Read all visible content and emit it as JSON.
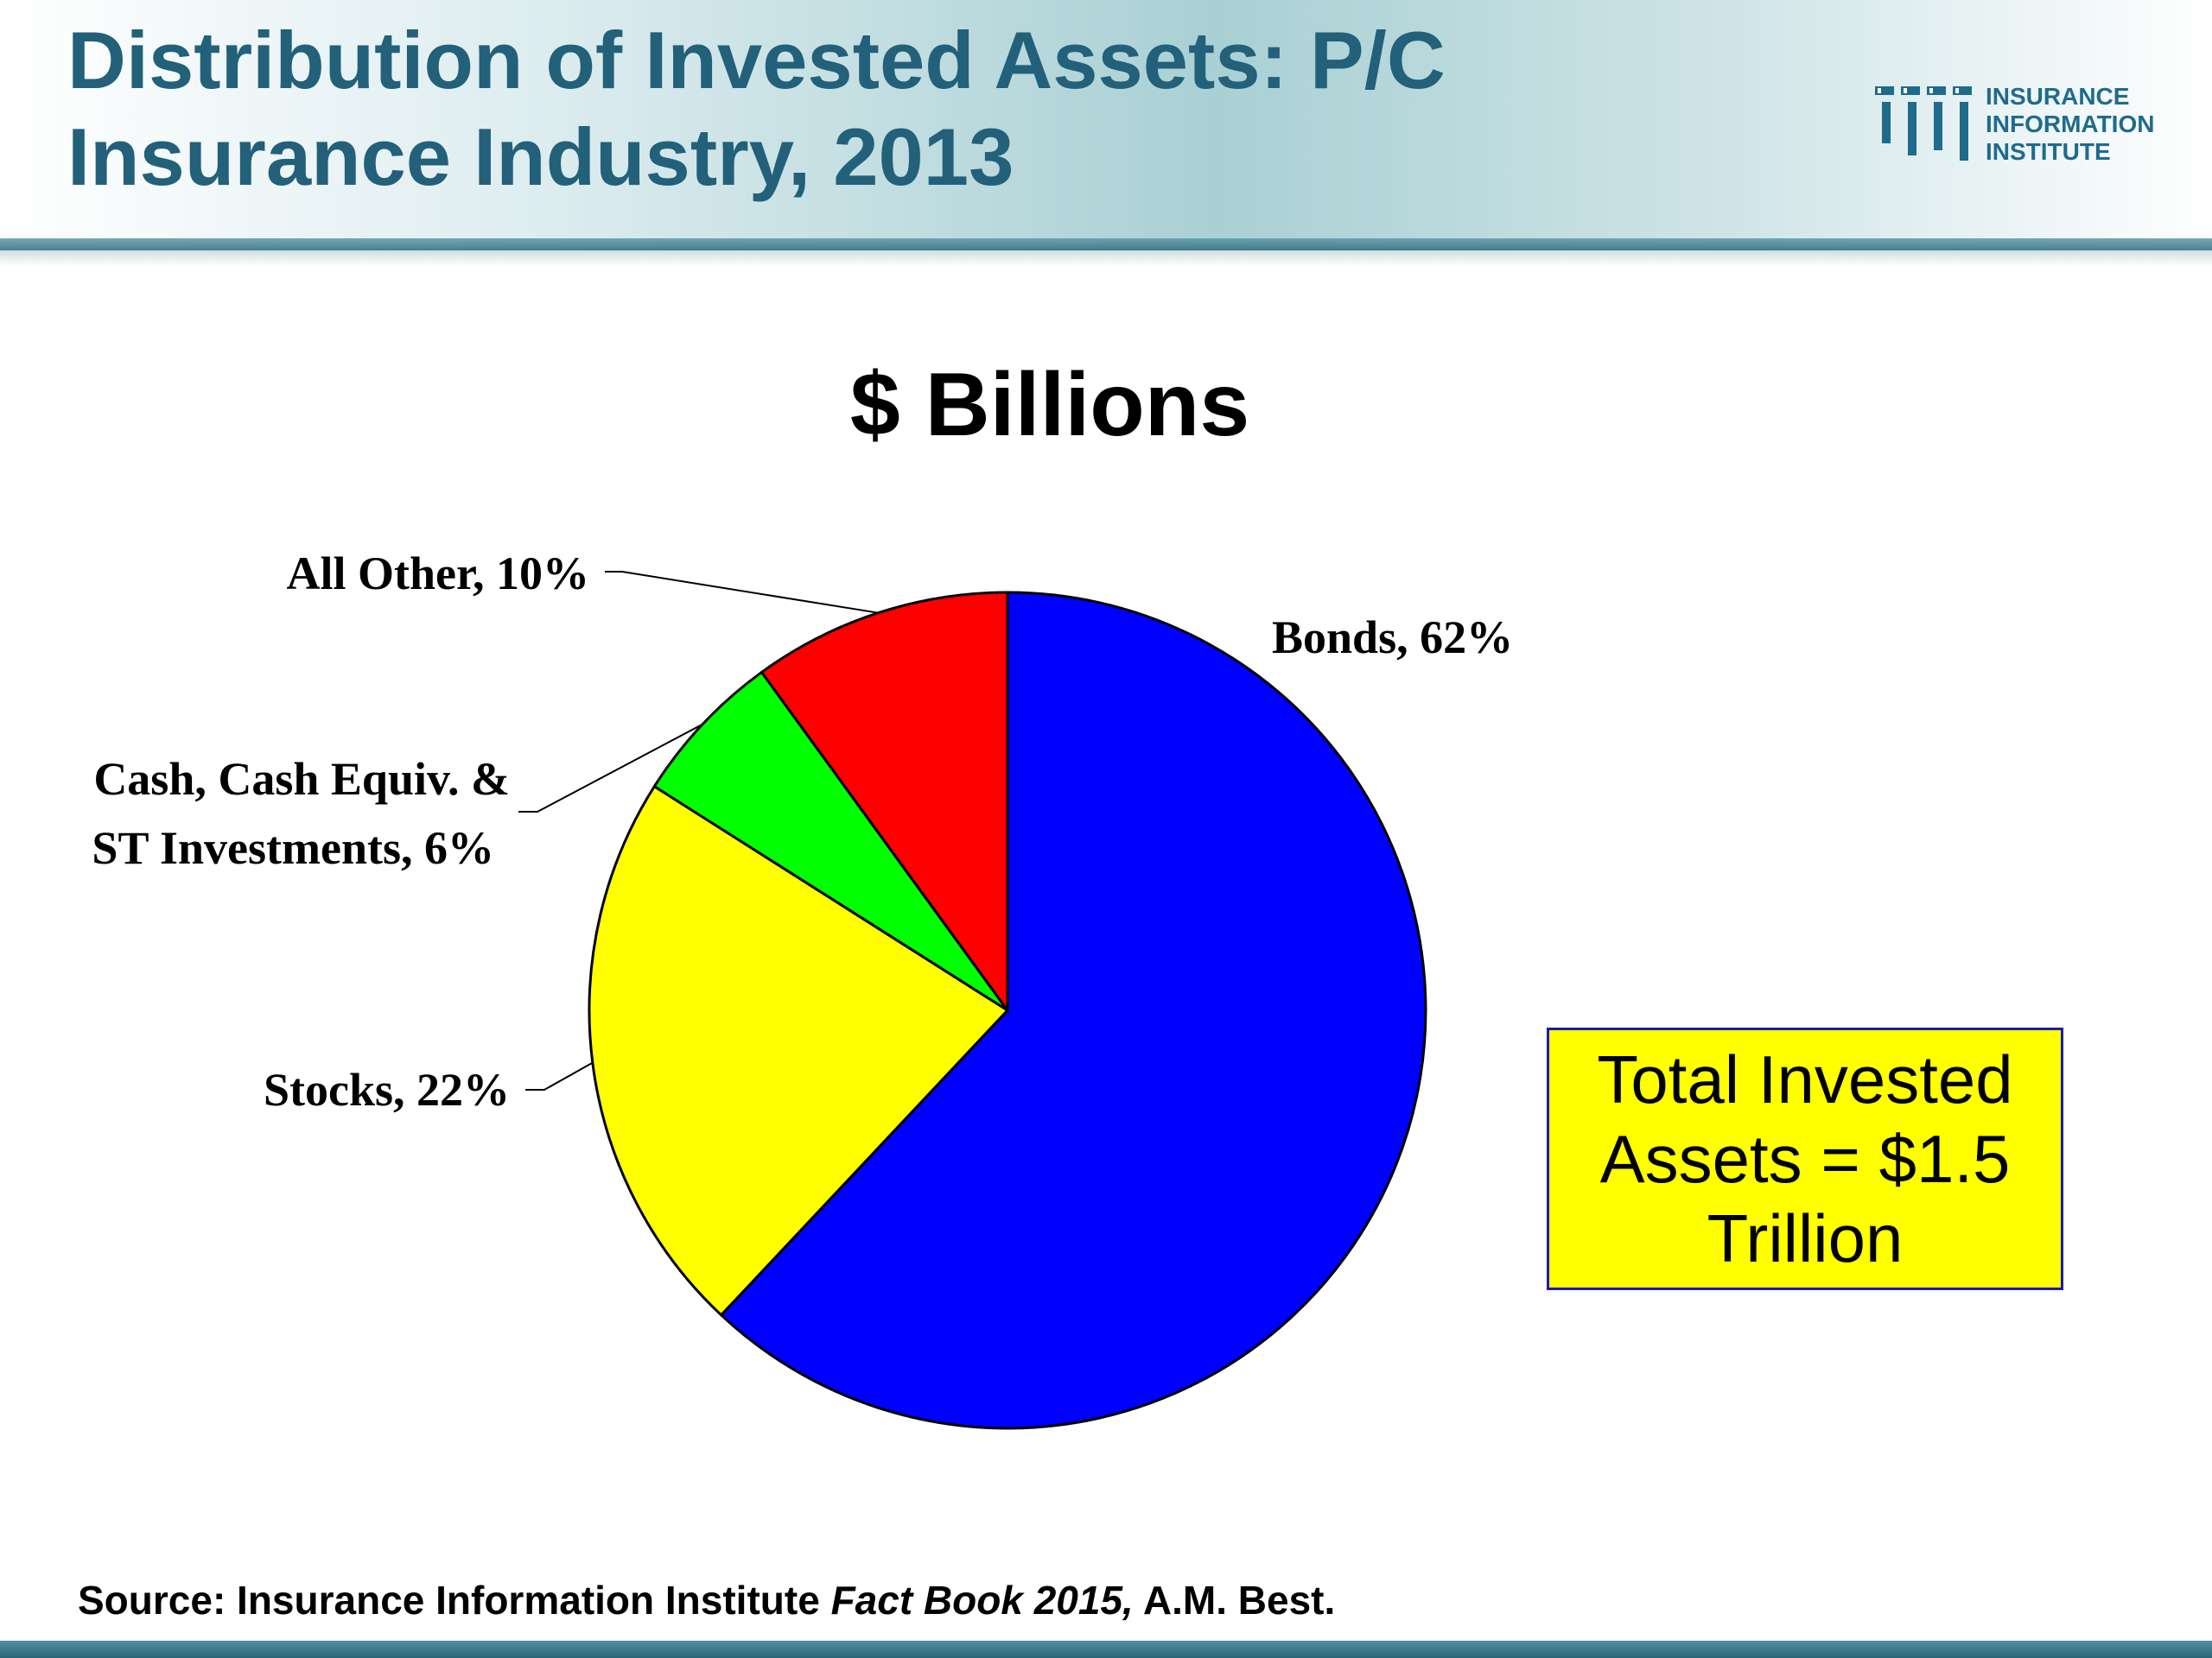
{
  "header": {
    "title": "Distribution of Invested Assets: P/C Insurance Industry, 2013",
    "logo_lines": [
      "INSURANCE",
      "INFORMATION",
      "INSTITUTE"
    ]
  },
  "chart_data": {
    "type": "pie",
    "title": "$ Billions",
    "slices": [
      {
        "category": "Bonds",
        "value": 62,
        "label": "Bonds, 62%",
        "color": "#0000ff"
      },
      {
        "category": "Stocks",
        "value": 22,
        "label": "Stocks, 22%",
        "color": "#ffff00"
      },
      {
        "category": "Cash, Cash Equiv. & ST Investments",
        "value": 6,
        "label_lines": [
          "Cash, Cash Equiv. &",
          "ST Investments, 6%"
        ],
        "color": "#00ff00"
      },
      {
        "category": "All Other",
        "value": 10,
        "label": "All Other, 10%",
        "color": "#ff0000"
      }
    ]
  },
  "callout": {
    "text": "Total Invested Assets = $1.5 Trillion"
  },
  "source": {
    "prefix": "Source:  Insurance Information Institute ",
    "italic": "Fact Book 2015,",
    "suffix": " A.M. Best."
  },
  "colors": {
    "title": "#23607a",
    "logo": "#1f6b8c",
    "header_band": "#a9d0d4",
    "footer_bar": "#2a6679"
  }
}
